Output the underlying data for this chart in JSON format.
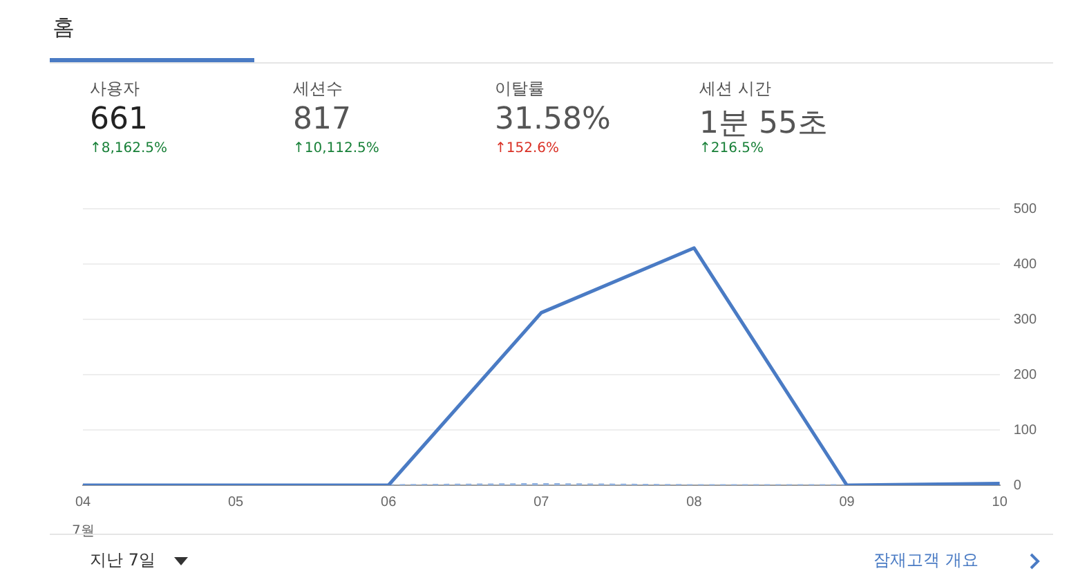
{
  "chart_data": {
    "type": "line",
    "title": "홈",
    "categories": [
      "04",
      "05",
      "06",
      "07",
      "08",
      "09",
      "10"
    ],
    "series": [
      {
        "color": "#4a7bc4",
        "values": [
          0,
          0,
          0,
          312,
          429,
          0,
          3
        ],
        "line_style": "solid"
      },
      {
        "color": "#8fb0e0",
        "values": [
          null,
          null,
          0,
          2,
          0,
          0,
          null
        ],
        "line_style": "dashed"
      }
    ],
    "ylim": [
      0,
      500
    ],
    "yticks": [
      0,
      100,
      200,
      300,
      400,
      500
    ],
    "grid": "y",
    "legend": false,
    "marker": "none",
    "annotations": [
      "7월",
      "사용자",
      "661",
      "↑8,162.5%",
      "세션수",
      "817",
      "↑10,112.5%",
      "이탈률",
      "31.58%",
      "↑152.6%",
      "세션 시간",
      "1분 55초",
      "↑216.5%",
      "지난 7일",
      "잠재고객 개요"
    ]
  }
}
